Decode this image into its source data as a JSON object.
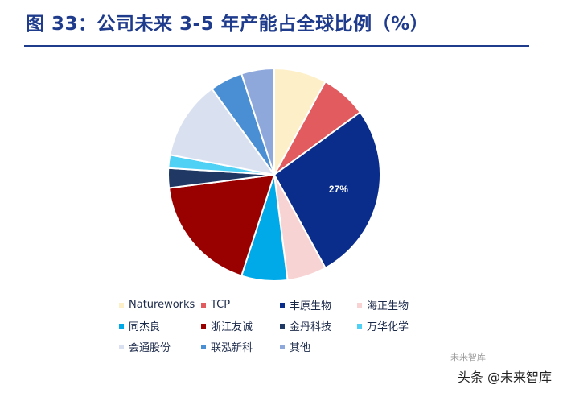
{
  "title": "图 33：公司未来 3-5 年产能占全球比例（%）",
  "watermark": "头条 @未来智库",
  "watermark_logo": "未来智库",
  "chart_data": {
    "type": "pie",
    "title": "",
    "slices": [
      {
        "label": "Natureworks",
        "value": 8,
        "color": "#fdf0c8"
      },
      {
        "label": "TCP",
        "value": 7,
        "color": "#e15b5f"
      },
      {
        "label": "丰原生物",
        "value": 27,
        "color": "#0a2d8c",
        "data_label": "27%"
      },
      {
        "label": "海正生物",
        "value": 6,
        "color": "#f8d3d3"
      },
      {
        "label": "同杰良",
        "value": 7,
        "color": "#00a9e8"
      },
      {
        "label": "浙江友诚",
        "value": 18,
        "color": "#990000"
      },
      {
        "label": "金丹科技",
        "value": 3,
        "color": "#1f3864"
      },
      {
        "label": "万华化学",
        "value": 2,
        "color": "#4fd0f5"
      },
      {
        "label": "会通股份",
        "value": 12,
        "color": "#d9e0f0"
      },
      {
        "label": "联泓新科",
        "value": 5,
        "color": "#4a8fd4"
      },
      {
        "label": "其他",
        "value": 5,
        "color": "#8fa8dc"
      }
    ],
    "legend_position": "bottom"
  }
}
